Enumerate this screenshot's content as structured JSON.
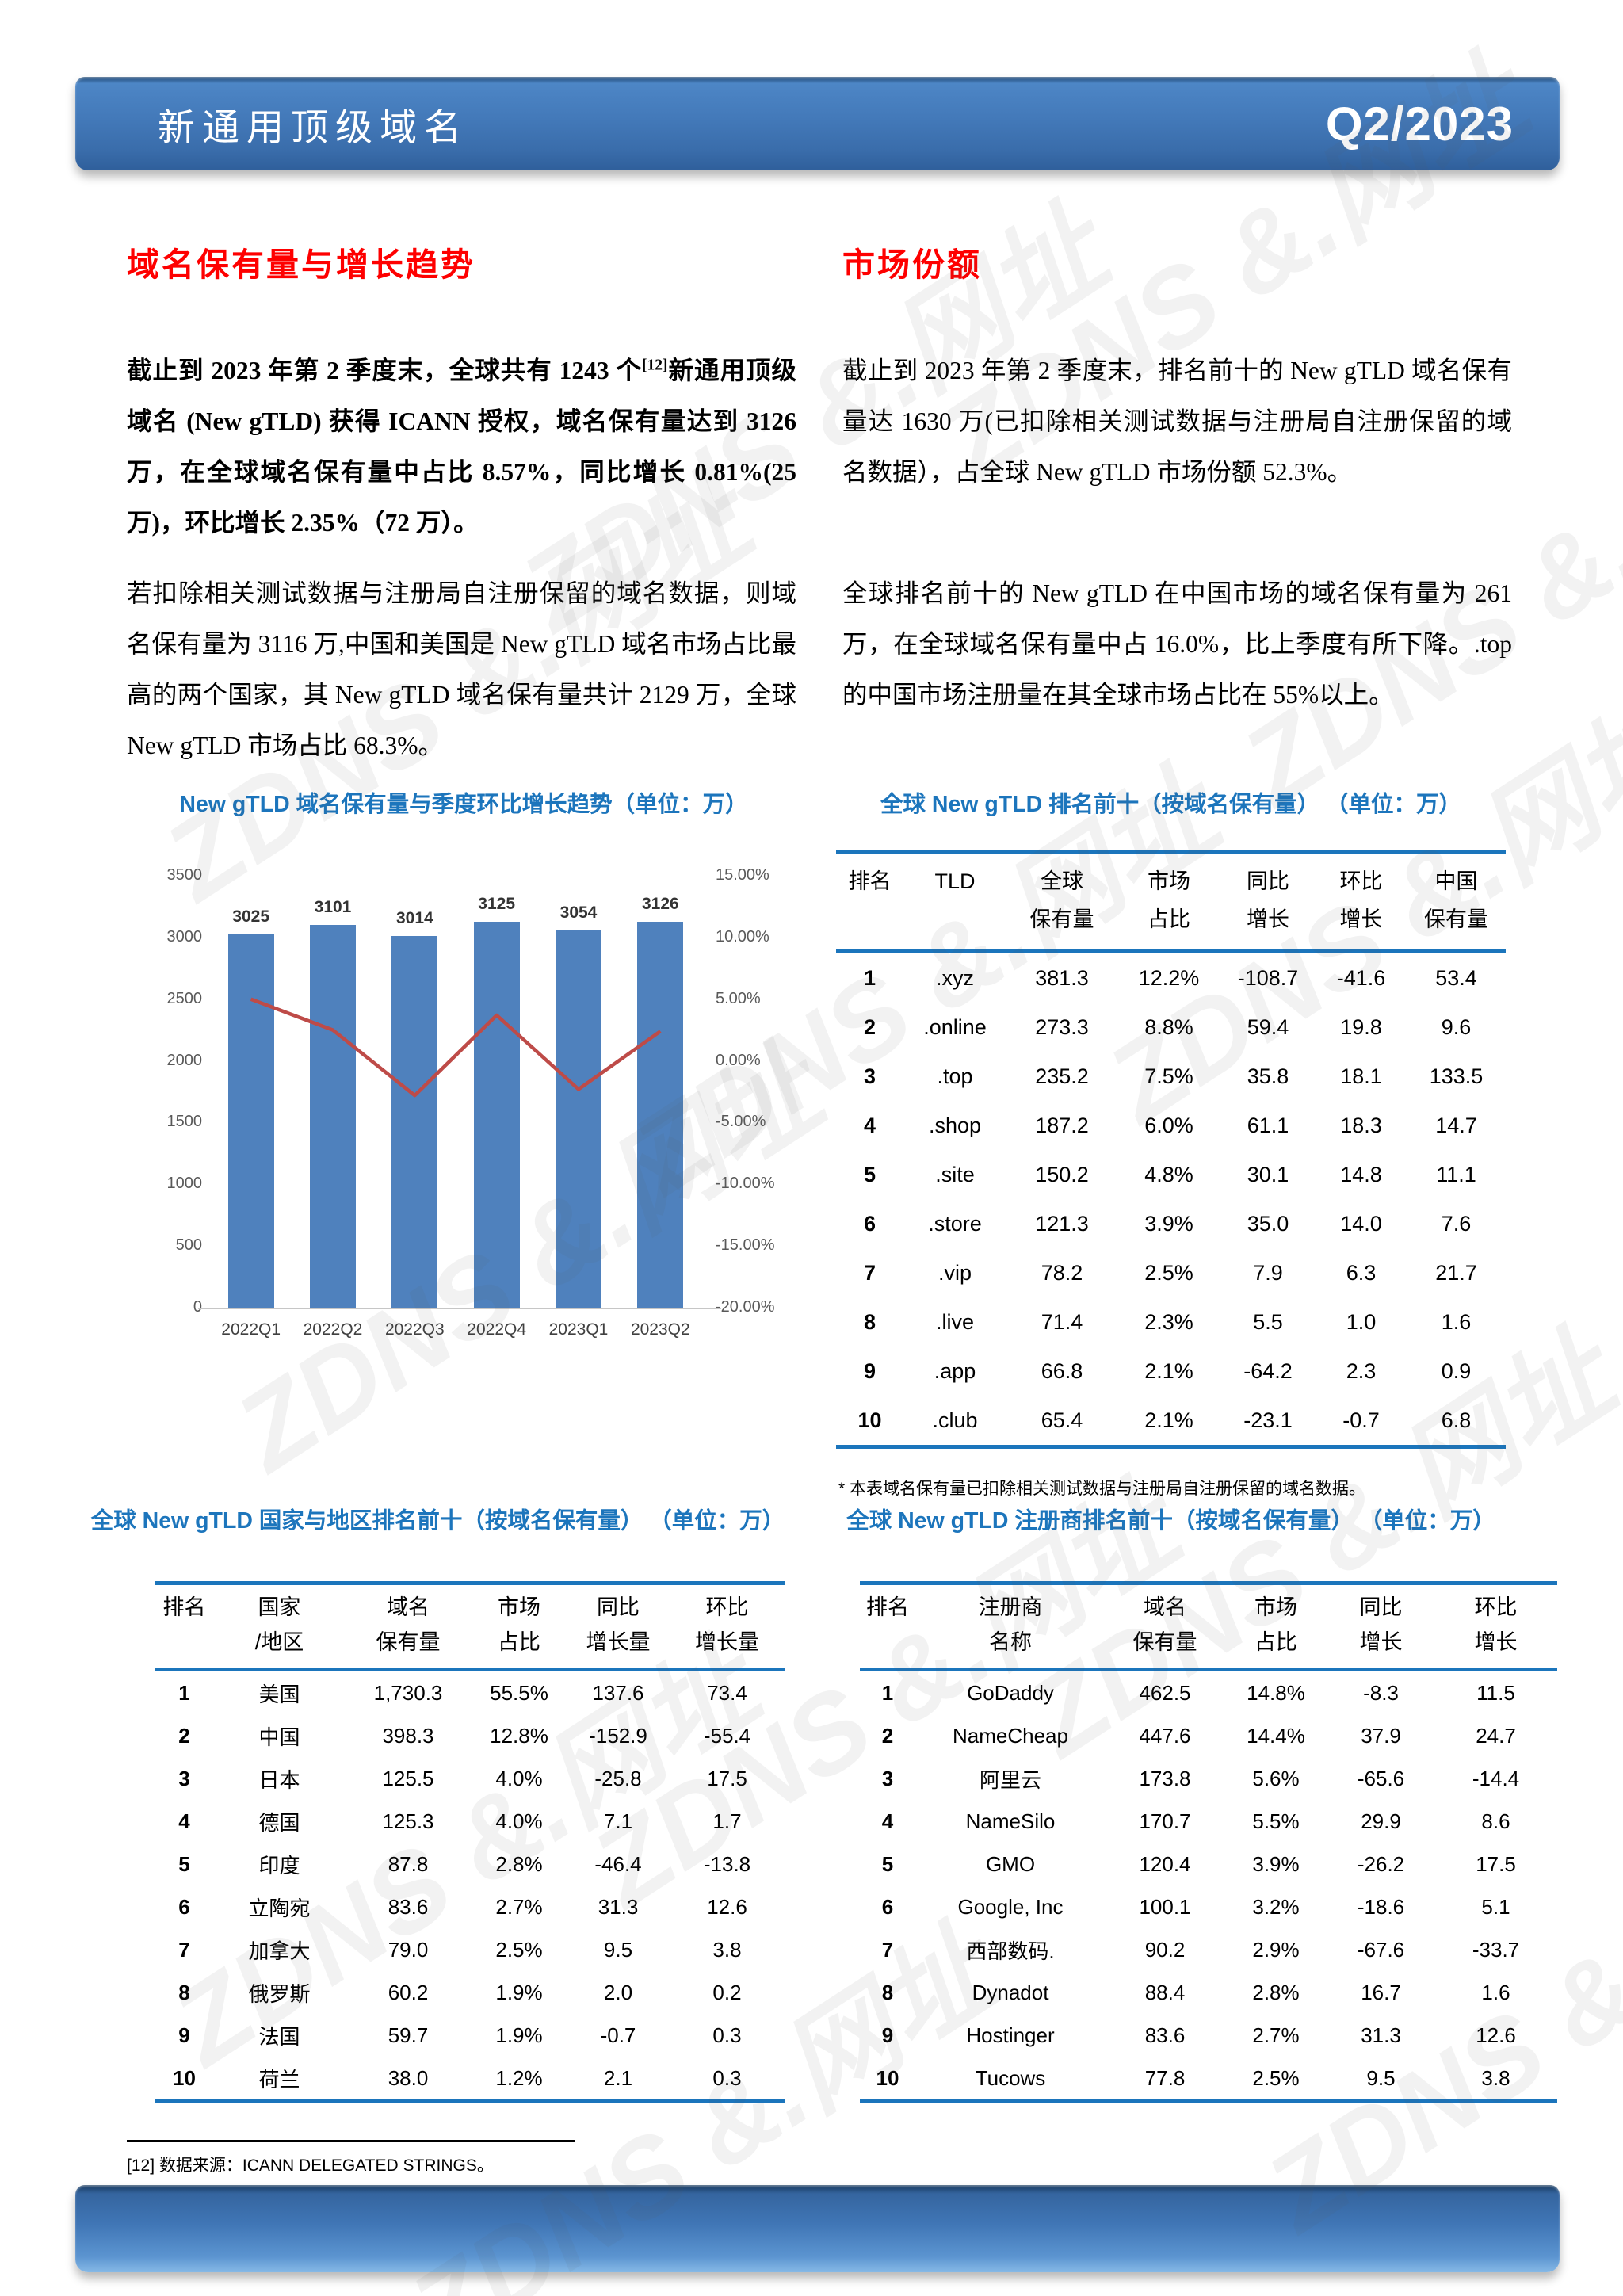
{
  "watermark": {
    "text": "ZDNS &.网址"
  },
  "header": {
    "title": "新通用顶级域名",
    "period": "Q2/2023"
  },
  "sections": {
    "left_heading": "域名保有量与增长趋势",
    "right_heading": "市场份额"
  },
  "paragraphs": {
    "left1_pre": "截止到 2023 年第 2 季度末，全球共有 1243 个",
    "left1_sup": "[12]",
    "left1_post": "新通用顶级域名 (New gTLD) 获得 ICANN 授权，域名保有量达到 3126 万，在全球域名保有量中占比 8.57%，同比增长 0.81%(25 万)，环比增长 2.35%（72 万）。",
    "left2": "若扣除相关测试数据与注册局自注册保留的域名数据，则域名保有量为 3116 万,中国和美国是 New gTLD 域名市场占比最高的两个国家，其 New gTLD 域名保有量共计 2129 万，全球 New gTLD 市场占比 68.3%。",
    "right1": "截止到 2023 年第 2 季度末，排名前十的 New gTLD 域名保有量达 1630 万(已扣除相关测试数据与注册局自注册保留的域名数据），占全球 New gTLD 市场份额 52.3%。",
    "right2": "全球排名前十的 New gTLD 在中国市场的域名保有量为 261 万，在全球域名保有量中占 16.0%，比上季度有所下降。.top 的中国市场注册量在其全球市场占比在 55%以上。"
  },
  "chart_data": {
    "type": "bar+line",
    "title": "New gTLD 域名保有量与季度环比增长趋势（单位：万）",
    "categories": [
      "2022Q1",
      "2022Q2",
      "2022Q3",
      "2022Q4",
      "2023Q1",
      "2023Q2"
    ],
    "series": [
      {
        "name": "域名保有量",
        "type": "bar",
        "values": [
          3025,
          3101,
          3014,
          3125,
          3054,
          3126
        ],
        "color": "#4F81BD"
      },
      {
        "name": "季度环比增长",
        "type": "line",
        "values": [
          5.0,
          2.5,
          -2.8,
          3.7,
          -2.3,
          2.4
        ],
        "color": "#BE4B48"
      }
    ],
    "left_axis": {
      "min": 0,
      "max": 3500,
      "step": 500,
      "ticks": [
        "3500",
        "3000",
        "2500",
        "2000",
        "1500",
        "1000",
        "500",
        "0"
      ]
    },
    "right_axis": {
      "min": -20,
      "max": 15,
      "step": 5,
      "ticks": [
        "15.00%",
        "10.00%",
        "5.00%",
        "0.00%",
        "-5.00%",
        "-10.00%",
        "-15.00%",
        "-20.00%"
      ]
    },
    "grid": false,
    "legend": "none"
  },
  "tld_table": {
    "title": "全球 New gTLD 排名前十（按域名保有量） （单位：万）",
    "headers": [
      "排名",
      "TLD",
      "全球\n保有量",
      "市场\n占比",
      "同比\n增长",
      "环比\n增长",
      "中国\n保有量"
    ],
    "rows": [
      [
        "1",
        ".xyz",
        "381.3",
        "12.2%",
        "-108.7",
        "-41.6",
        "53.4"
      ],
      [
        "2",
        ".online",
        "273.3",
        "8.8%",
        "59.4",
        "19.8",
        "9.6"
      ],
      [
        "3",
        ".top",
        "235.2",
        "7.5%",
        "35.8",
        "18.1",
        "133.5"
      ],
      [
        "4",
        ".shop",
        "187.2",
        "6.0%",
        "61.1",
        "18.3",
        "14.7"
      ],
      [
        "5",
        ".site",
        "150.2",
        "4.8%",
        "30.1",
        "14.8",
        "11.1"
      ],
      [
        "6",
        ".store",
        "121.3",
        "3.9%",
        "35.0",
        "14.0",
        "7.6"
      ],
      [
        "7",
        ".vip",
        "78.2",
        "2.5%",
        "7.9",
        "6.3",
        "21.7"
      ],
      [
        "8",
        ".live",
        "71.4",
        "2.3%",
        "5.5",
        "1.0",
        "1.6"
      ],
      [
        "9",
        ".app",
        "66.8",
        "2.1%",
        "-64.2",
        "2.3",
        "0.9"
      ],
      [
        "10",
        ".club",
        "65.4",
        "2.1%",
        "-23.1",
        "-0.7",
        "6.8"
      ]
    ],
    "footnote": "* 本表域名保有量已扣除相关测试数据与注册局自注册保留的域名数据。"
  },
  "country_table": {
    "title": "全球 New gTLD 国家与地区排名前十（按域名保有量） （单位：万）",
    "headers": [
      "排名",
      "国家\n/地区",
      "域名\n保有量",
      "市场\n占比",
      "同比\n增长量",
      "环比\n增长量"
    ],
    "rows": [
      [
        "1",
        "美国",
        "1,730.3",
        "55.5%",
        "137.6",
        "73.4"
      ],
      [
        "2",
        "中国",
        "398.3",
        "12.8%",
        "-152.9",
        "-55.4"
      ],
      [
        "3",
        "日本",
        "125.5",
        "4.0%",
        "-25.8",
        "17.5"
      ],
      [
        "4",
        "德国",
        "125.3",
        "4.0%",
        "7.1",
        "1.7"
      ],
      [
        "5",
        "印度",
        "87.8",
        "2.8%",
        "-46.4",
        "-13.8"
      ],
      [
        "6",
        "立陶宛",
        "83.6",
        "2.7%",
        "31.3",
        "12.6"
      ],
      [
        "7",
        "加拿大",
        "79.0",
        "2.5%",
        "9.5",
        "3.8"
      ],
      [
        "8",
        "俄罗斯",
        "60.2",
        "1.9%",
        "2.0",
        "0.2"
      ],
      [
        "9",
        "法国",
        "59.7",
        "1.9%",
        "-0.7",
        "0.3"
      ],
      [
        "10",
        "荷兰",
        "38.0",
        "1.2%",
        "2.1",
        "0.3"
      ]
    ]
  },
  "registrar_table": {
    "title": "全球 New gTLD 注册商排名前十（按域名保有量） （单位：万）",
    "headers": [
      "排名",
      "注册商\n名称",
      "域名\n保有量",
      "市场\n占比",
      "同比\n增长",
      "环比\n增长"
    ],
    "rows": [
      [
        "1",
        "GoDaddy",
        "462.5",
        "14.8%",
        "-8.3",
        "11.5"
      ],
      [
        "2",
        "NameCheap",
        "447.6",
        "14.4%",
        "37.9",
        "24.7"
      ],
      [
        "3",
        "阿里云",
        "173.8",
        "5.6%",
        "-65.6",
        "-14.4"
      ],
      [
        "4",
        "NameSilo",
        "170.7",
        "5.5%",
        "29.9",
        "8.6"
      ],
      [
        "5",
        "GMO",
        "120.4",
        "3.9%",
        "-26.2",
        "17.5"
      ],
      [
        "6",
        "Google, Inc",
        "100.1",
        "3.2%",
        "-18.6",
        "5.1"
      ],
      [
        "7",
        "西部数码.",
        "90.2",
        "2.9%",
        "-67.6",
        "-33.7"
      ],
      [
        "8",
        "Dynadot",
        "88.4",
        "2.8%",
        "16.7",
        "1.6"
      ],
      [
        "9",
        "Hostinger",
        "83.6",
        "2.7%",
        "31.3",
        "12.6"
      ],
      [
        "10",
        "Tucows",
        "77.8",
        "2.5%",
        "9.5",
        "3.8"
      ]
    ]
  },
  "footnotes": {
    "ref": "[12] 数据来源：ICANN DELEGATED STRINGS。"
  },
  "colors": {
    "accent_blue": "#1C75BC",
    "table_border": "#1B75BC",
    "heading_red": "#FE0000",
    "bar": "#4F81BD",
    "line": "#BE4B48"
  }
}
